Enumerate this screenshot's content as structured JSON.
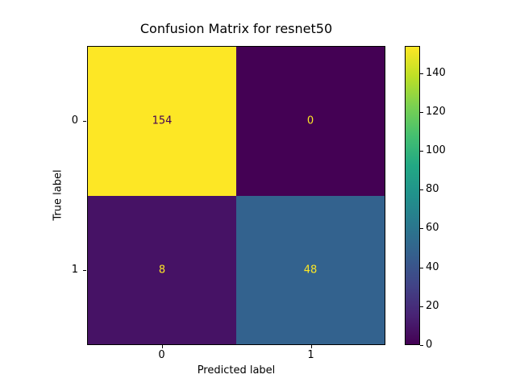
{
  "chart_data": {
    "type": "heatmap",
    "title": "Confusion Matrix for resnet50",
    "xlabel": "Predicted label",
    "ylabel": "True label",
    "x_tick_labels": [
      "0",
      "1"
    ],
    "y_tick_labels": [
      "0",
      "1"
    ],
    "matrix": [
      [
        154,
        0
      ],
      [
        8,
        48
      ]
    ],
    "vmin": 0,
    "vmax": 154,
    "colormap": "viridis",
    "cell_colors": [
      [
        "#fde725",
        "#440154"
      ],
      [
        "#461265",
        "#33628e"
      ]
    ],
    "cell_text_colors": [
      [
        "#440154",
        "#fde725"
      ],
      [
        "#fde725",
        "#fde725"
      ]
    ],
    "colorbar_ticks": [
      0,
      20,
      40,
      60,
      80,
      100,
      120,
      140
    ],
    "colorbar_gradient_stops": [
      "#440154",
      "#482475",
      "#414487",
      "#355f8d",
      "#2a788e",
      "#21918c",
      "#22a884",
      "#44bf70",
      "#7ad151",
      "#bddf26",
      "#fde725"
    ],
    "legend_position": "right-colorbar",
    "grid": false
  }
}
